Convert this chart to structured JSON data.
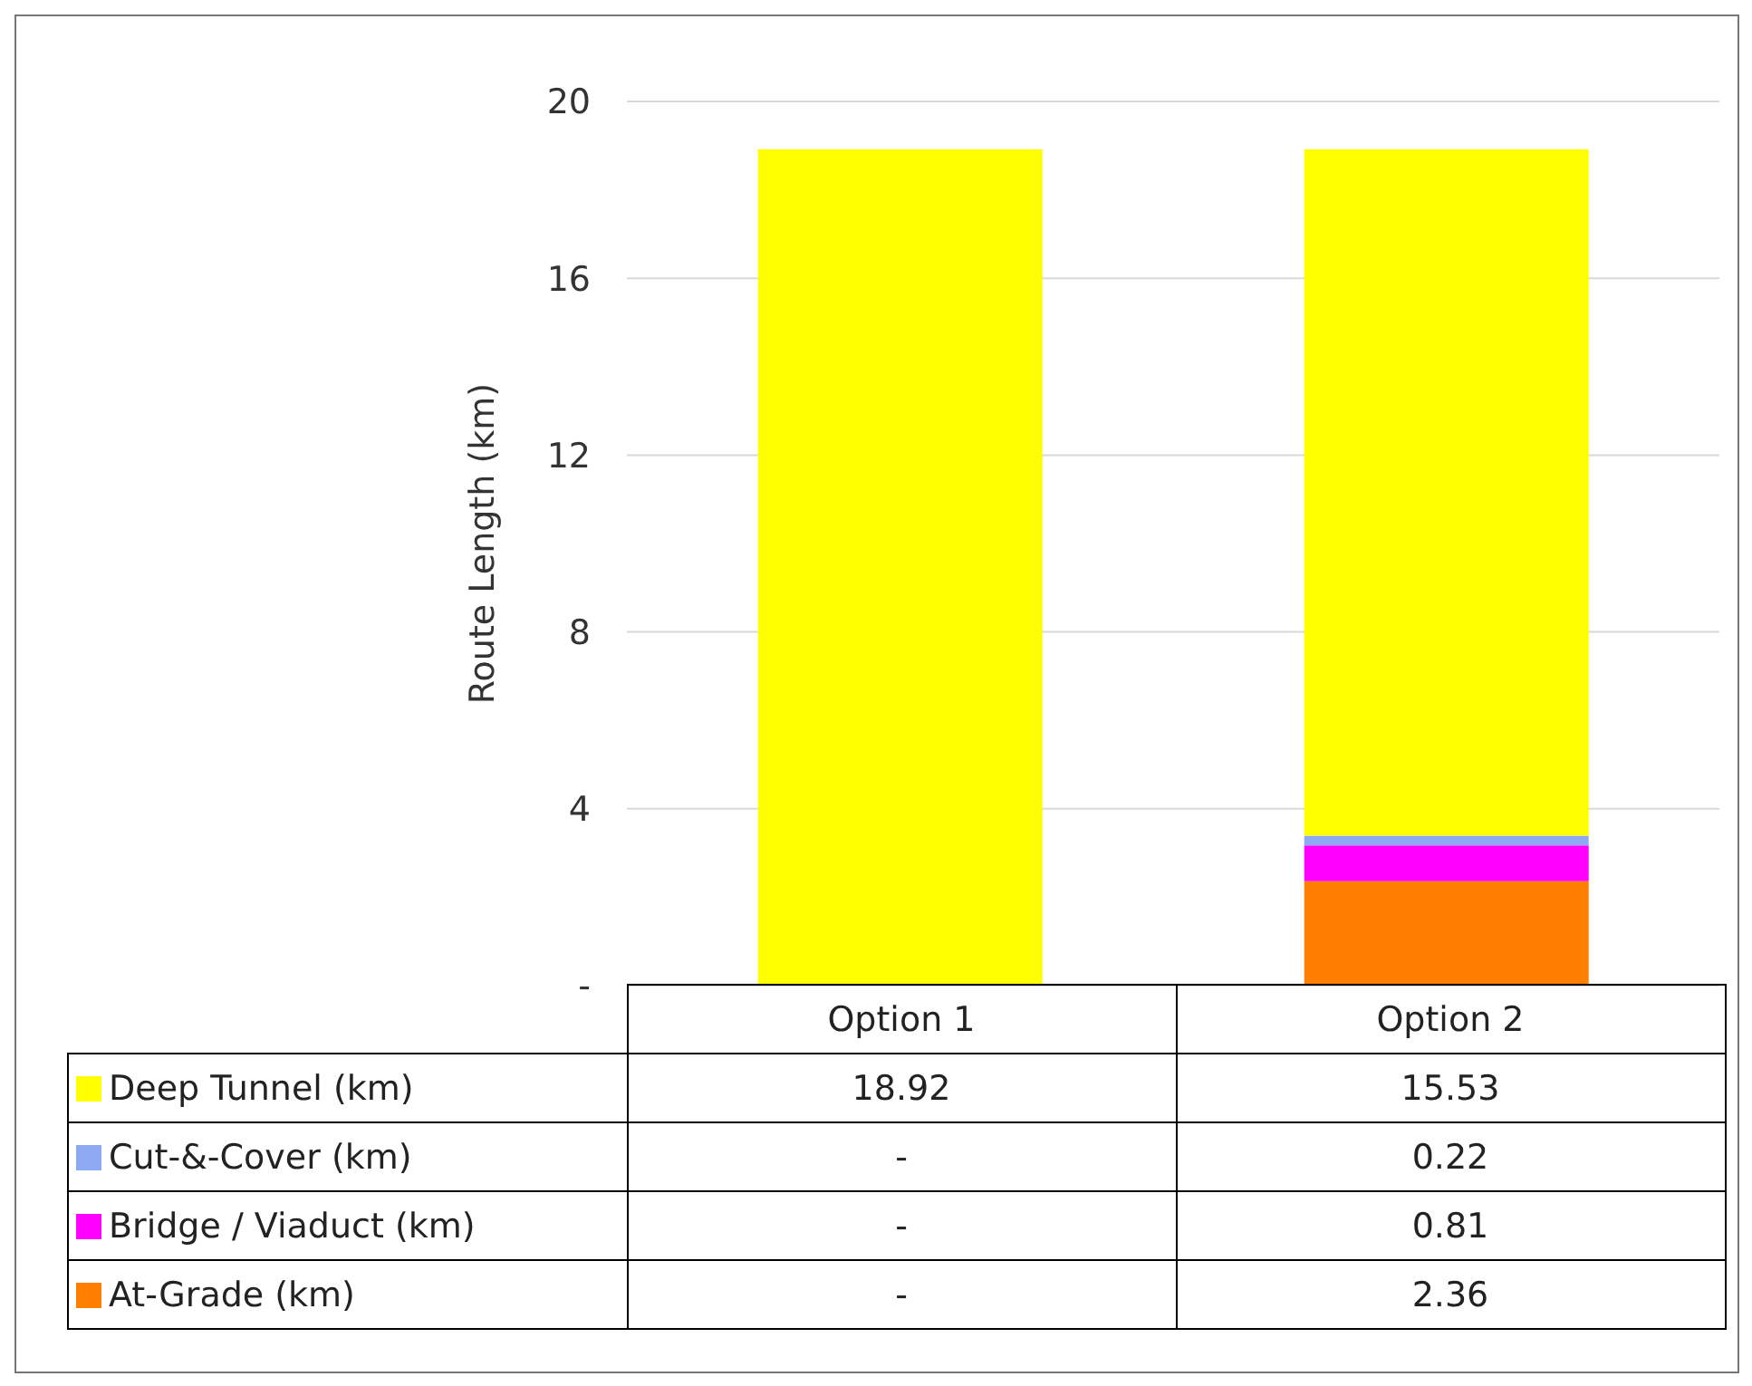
{
  "chart_data": {
    "type": "bar",
    "stacked": true,
    "ylabel": "Route Length (km)",
    "categories": [
      "Option 1",
      "Option 2"
    ],
    "series": [
      {
        "name": "At-Grade (km)",
        "color": "#ff8000",
        "values": [
          0,
          2.36
        ],
        "value_labels": [
          "-",
          "2.36"
        ]
      },
      {
        "name": "Bridge / Viaduct (km)",
        "color": "#ff00ff",
        "values": [
          0,
          0.81
        ],
        "value_labels": [
          "-",
          "0.81"
        ]
      },
      {
        "name": "Cut-&-Cover (km)",
        "color": "#8eaaf5",
        "values": [
          0,
          0.22
        ],
        "value_labels": [
          "-",
          "0.22"
        ]
      },
      {
        "name": "Deep Tunnel (km)",
        "color": "#ffff00",
        "values": [
          18.92,
          15.53
        ],
        "value_labels": [
          "18.92",
          "15.53"
        ]
      }
    ],
    "ylim": [
      0,
      20
    ],
    "yticks": [
      {
        "value": 0,
        "label": "-"
      },
      4,
      8,
      12,
      16,
      20
    ],
    "grid": "y",
    "legend": "bottom"
  }
}
